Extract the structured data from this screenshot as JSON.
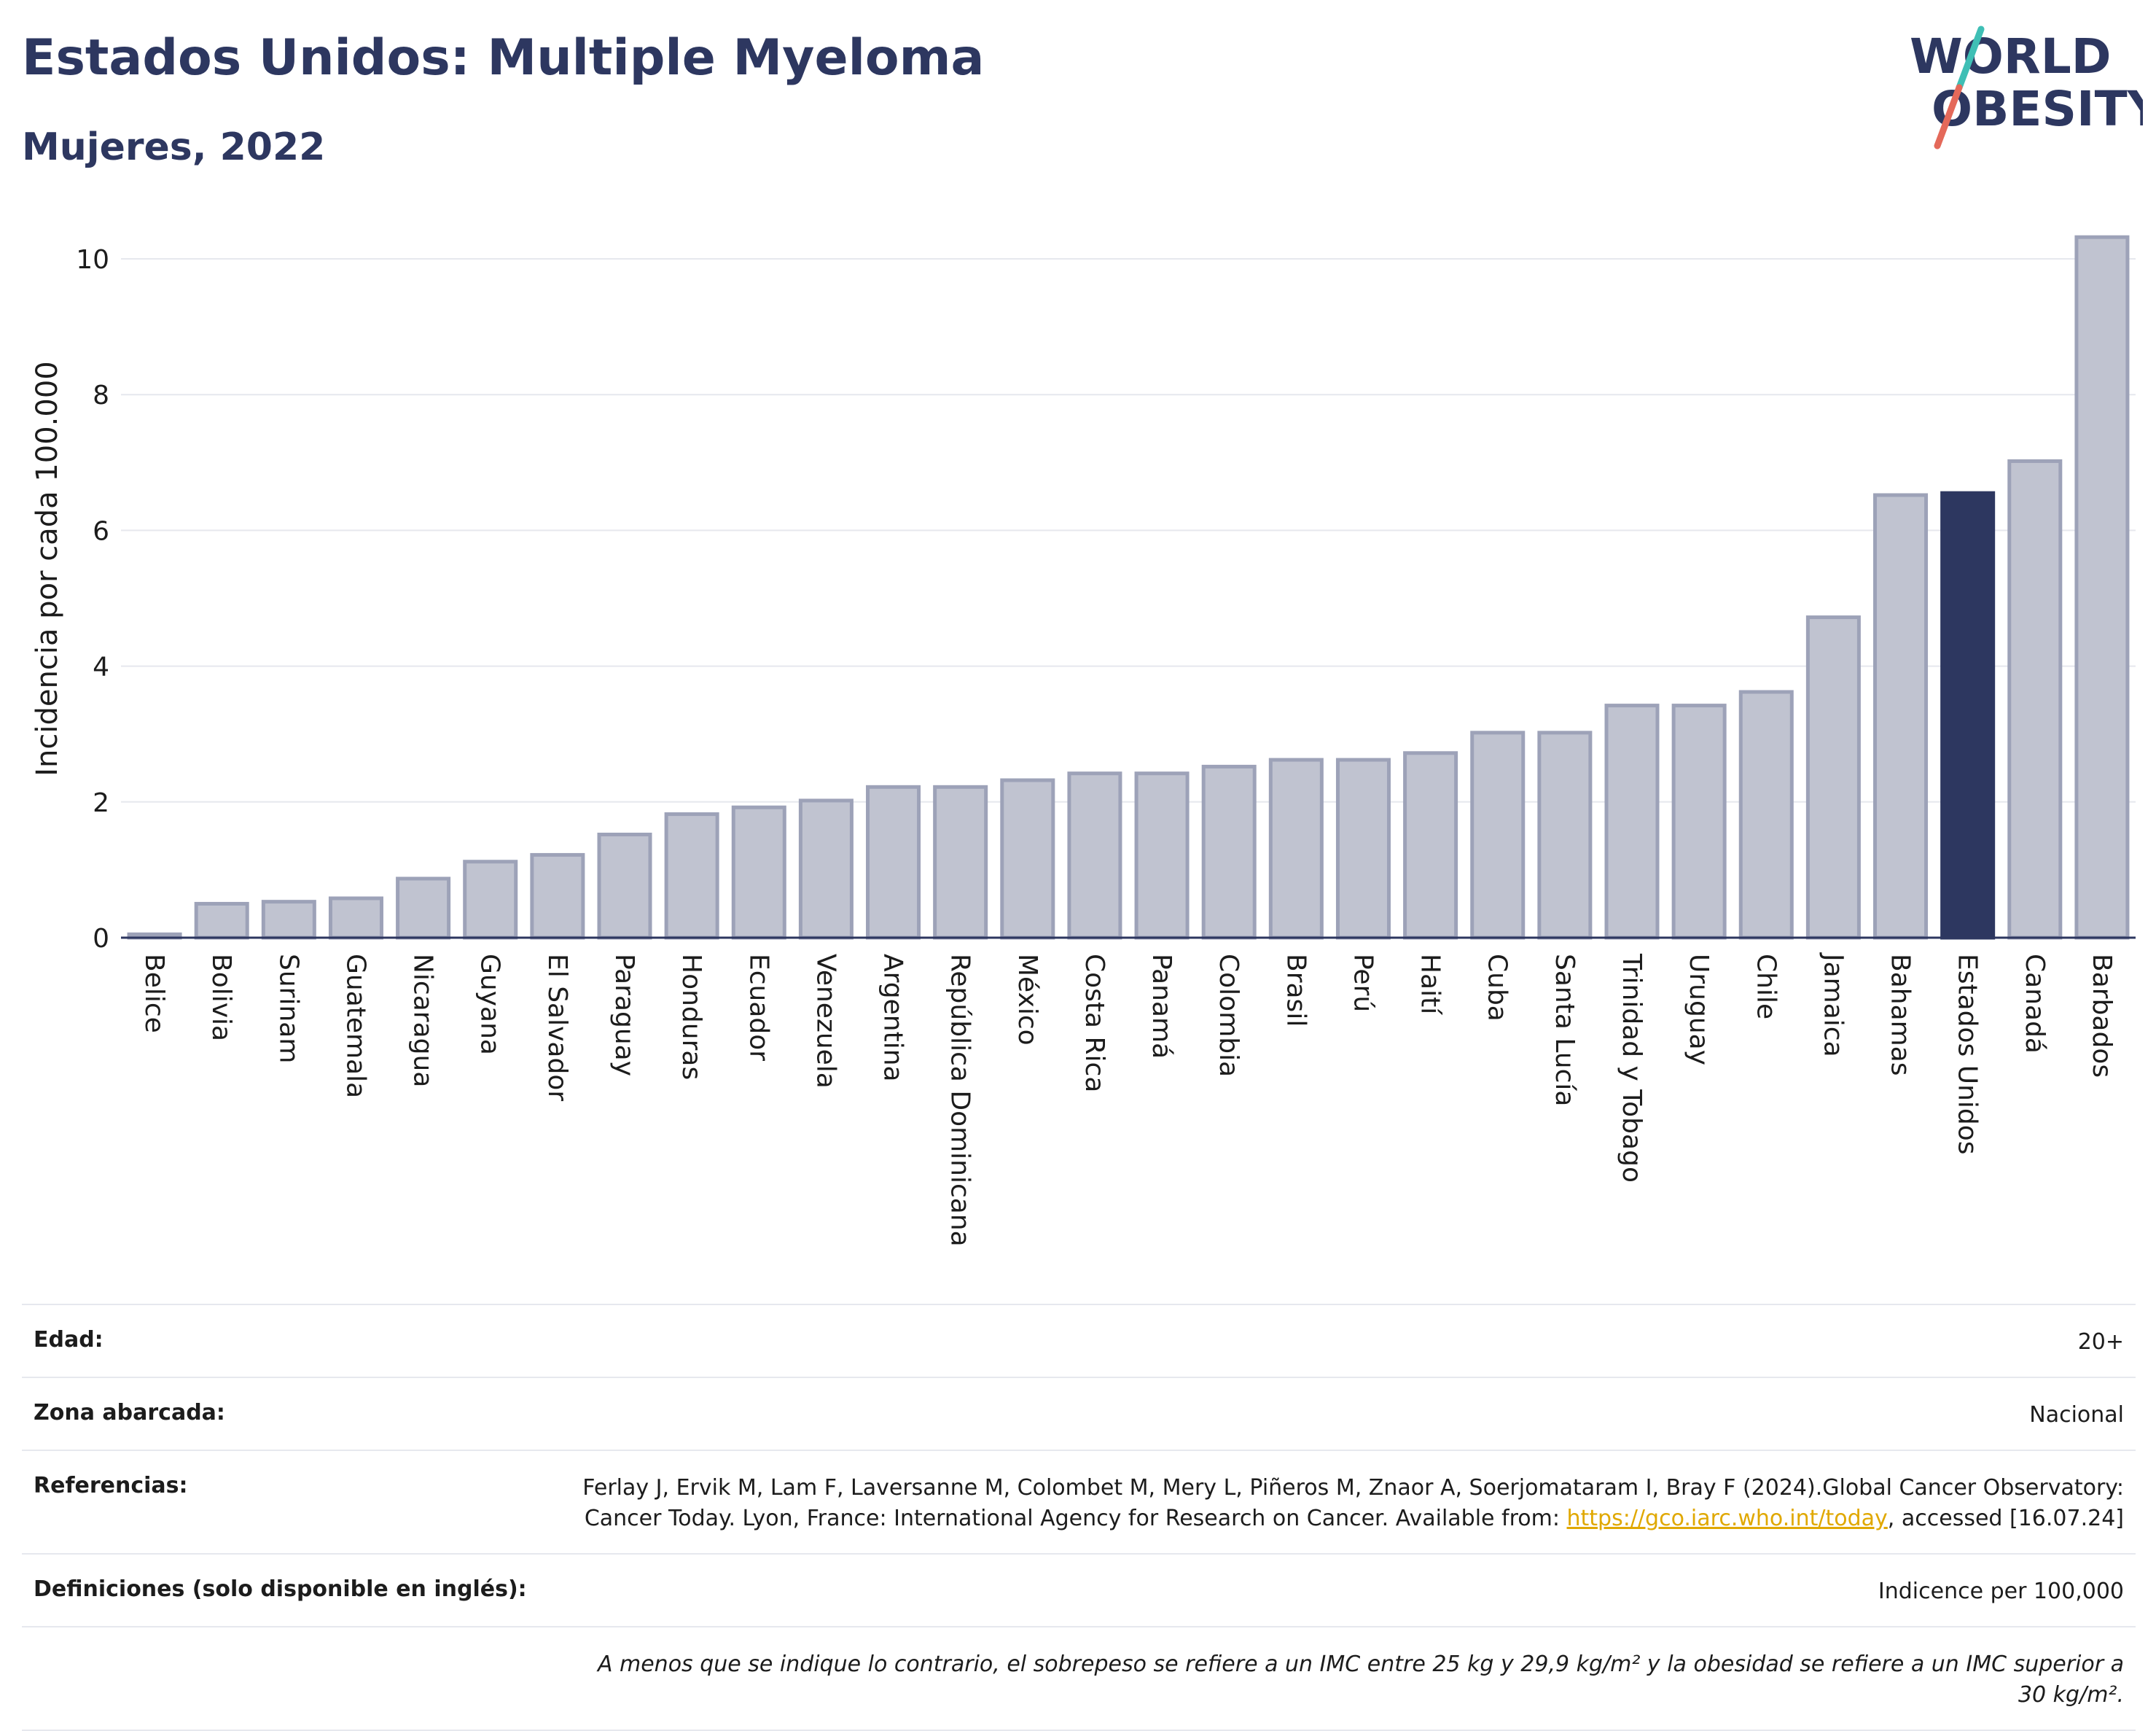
{
  "header": {
    "title": "Estados Unidos: Multiple Myeloma",
    "subtitle": "Mujeres, 2022"
  },
  "logo": {
    "line1": "WORLD",
    "line2": "OBESITY",
    "colors": {
      "text": "#2d3760",
      "slash_top": "#3fbfb5",
      "slash_bottom": "#e4695a"
    }
  },
  "chart_data": {
    "type": "bar",
    "ylabel": "Incidencia por cada 100.000",
    "xlabel": "",
    "ylim": [
      0,
      10.4
    ],
    "yticks": [
      0,
      2,
      4,
      6,
      8,
      10
    ],
    "grid": true,
    "highlight": "Estados Unidos",
    "colors": {
      "bar": "#c0c3d0",
      "bar_border": "#9da2b8",
      "highlight": "#2d3760",
      "grid": "#e6e8ee",
      "axis": "#2d3760"
    },
    "categories": [
      "Belice",
      "Bolivia",
      "Surinam",
      "Guatemala",
      "Nicaragua",
      "Guyana",
      "El Salvador",
      "Paraguay",
      "Honduras",
      "Ecuador",
      "Venezuela",
      "Argentina",
      "República Dominicana",
      "México",
      "Costa Rica",
      "Panamá",
      "Colombia",
      "Brasil",
      "Perú",
      "Haití",
      "Cuba",
      "Santa Lucía",
      "Trinidad y Tobago",
      "Uruguay",
      "Chile",
      "Jamaica",
      "Bahamas",
      "Estados Unidos",
      "Canadá",
      "Barbados"
    ],
    "values": [
      0.05,
      0.5,
      0.53,
      0.58,
      0.87,
      1.12,
      1.22,
      1.52,
      1.82,
      1.92,
      2.02,
      2.22,
      2.22,
      2.32,
      2.42,
      2.42,
      2.52,
      2.62,
      2.62,
      2.72,
      3.02,
      3.02,
      3.42,
      3.42,
      3.62,
      4.72,
      6.52,
      6.55,
      7.02,
      10.32
    ]
  },
  "info": {
    "age_label": "Edad:",
    "age_value": "20+",
    "zone_label": "Zona abarcada:",
    "zone_value": "Nacional",
    "refs_label": "Referencias:",
    "refs_text_1": "Ferlay J, Ervik M, Lam F, Laversanne M, Colombet M, Mery L, Piñeros M, Znaor A, Soerjomataram I, Bray F (2024).Global Cancer Observatory: Cancer Today. Lyon, France: International Agency for Research on Cancer. Available from: ",
    "refs_link": "https://gco.iarc.who.int/today",
    "refs_text_2": ", accessed [16.07.24]",
    "defs_label": "Definiciones (solo disponible en inglés):",
    "defs_value": "Indicence per 100,000",
    "note": "A menos que se indique lo contrario, el sobrepeso se refiere a un IMC entre 25 kg y 29,9 kg/m² y la obesidad se refiere a un IMC superior a 30 kg/m²."
  }
}
